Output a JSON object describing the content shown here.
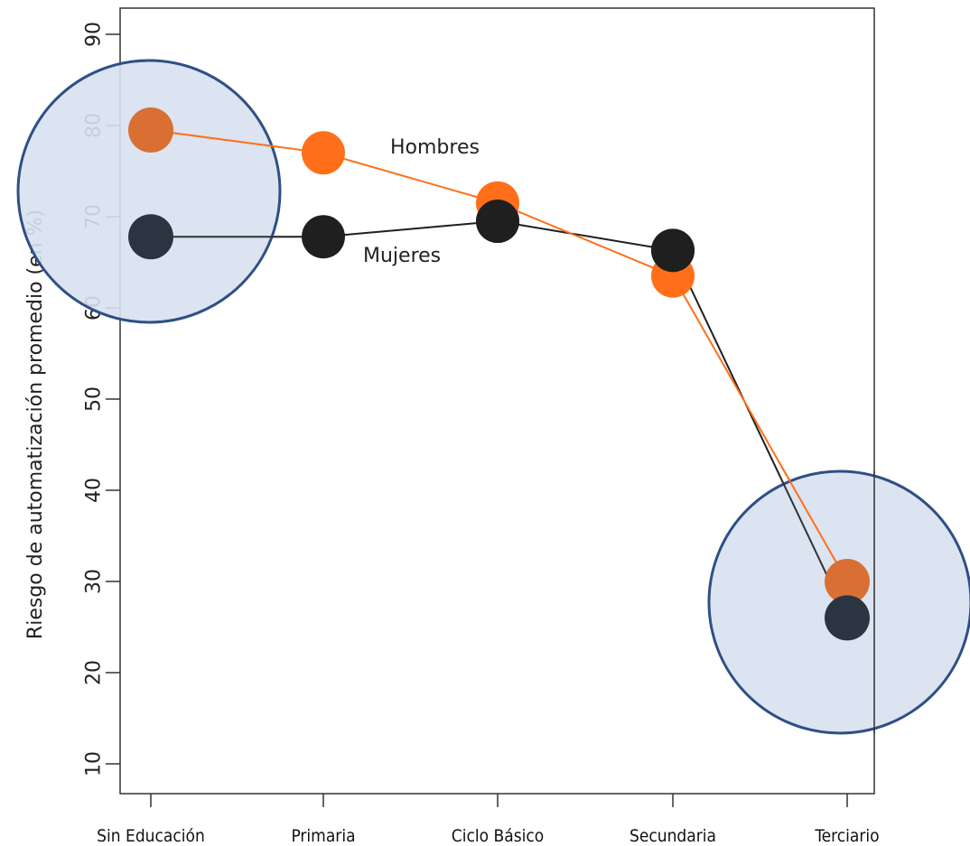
{
  "chart_data": {
    "type": "line",
    "title": "",
    "xlabel": "",
    "ylabel": "Riesgo de automatización promedio (en %)",
    "categories": [
      "Sin Educación",
      "Primaria",
      "Ciclo Básico",
      "Secundaria",
      "Terciario"
    ],
    "ylim": [
      7,
      93
    ],
    "yticks": [
      10,
      20,
      30,
      40,
      50,
      60,
      70,
      80,
      90
    ],
    "grid": false,
    "series": [
      {
        "name": "Hombres",
        "color": "#ff6f1a",
        "values": [
          79.5,
          77,
          71.5,
          63.5,
          30
        ]
      },
      {
        "name": "Mujeres",
        "color": "#1f1f1f",
        "values": [
          67.8,
          67.8,
          69.5,
          66.3,
          26
        ]
      }
    ],
    "highlight_color": "#d7e1ee",
    "highlight_stroke": "#2f4f86",
    "highlight_fill_points": {
      "Hombres": "#d96f33",
      "Mujeres": "#2b3441"
    }
  }
}
